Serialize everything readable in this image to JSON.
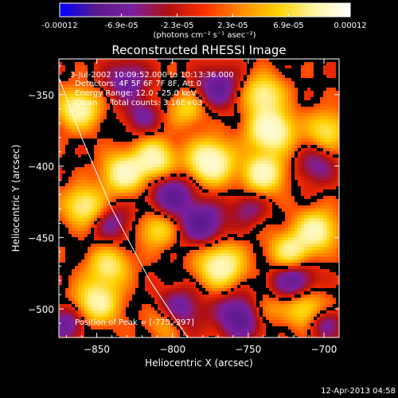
{
  "colorbar": {
    "tick_labels": [
      "-0.00012",
      "-6.9e-05",
      "-2.3e-05",
      "2.3e-05",
      "6.9e-05",
      "0.00012"
    ],
    "tick_values": [
      -0.00012,
      -6.9e-05,
      -2.3e-05,
      2.3e-05,
      6.9e-05,
      0.00012
    ],
    "unit_label": "(photons cm⁻² s⁻¹ asec⁻²)",
    "range": [
      -0.00012,
      0.00012
    ],
    "colors": [
      "#0000ff",
      "#5a1a8c",
      "#7a1fa0",
      "#b01010",
      "#ff3000",
      "#ff8c00",
      "#ffd000",
      "#fff4a0",
      "#ffffff"
    ]
  },
  "chart_data": {
    "type": "heatmap",
    "title": "Reconstructed RHESSI Image",
    "xlabel": "Heliocentric X (arcsec)",
    "ylabel": "Heliocentric Y (arcsec)",
    "xlim": [
      -875,
      -690
    ],
    "ylim": [
      -520,
      -325
    ],
    "x_ticks": [
      -850,
      -800,
      -750,
      -700
    ],
    "x_tick_labels": [
      "−850",
      "−800",
      "−750",
      "−700"
    ],
    "y_ticks": [
      -350,
      -400,
      -450,
      -500
    ],
    "y_tick_labels": [
      "−350",
      "−400",
      "−450",
      "−500"
    ],
    "annotations": [
      "3-Jul-2002 10:09:52.000 to 10:13:36.000",
      "Detectors: 4F 5F 6F 7F 8F, Att 0",
      "Energy Range: 12.0 - 25.0 keV",
      "Clean     Total counts: 3.16E+03"
    ],
    "peak_label": "Position of Peak = [-775,-397]",
    "peak_position": [
      -775,
      -397
    ],
    "limb_curve": [
      [
        -878,
        -330
      ],
      [
        -860,
        -380
      ],
      [
        -840,
        -430
      ],
      [
        -815,
        -480
      ],
      [
        -790,
        -520
      ]
    ],
    "blobs": [
      {
        "x": -775,
        "y": -397,
        "v": 1.0,
        "s": 10
      },
      {
        "x": -735,
        "y": -375,
        "v": 1.0,
        "s": 10
      },
      {
        "x": -740,
        "y": -405,
        "v": 0.85,
        "s": 9
      },
      {
        "x": -740,
        "y": -350,
        "v": 0.7,
        "s": 9
      },
      {
        "x": -812,
        "y": -395,
        "v": 0.8,
        "s": 9
      },
      {
        "x": -832,
        "y": -405,
        "v": 0.85,
        "s": 9
      },
      {
        "x": -862,
        "y": -360,
        "v": 0.8,
        "s": 9
      },
      {
        "x": -858,
        "y": -428,
        "v": 0.7,
        "s": 9
      },
      {
        "x": -850,
        "y": -495,
        "v": 0.75,
        "s": 10
      },
      {
        "x": -842,
        "y": -470,
        "v": 0.6,
        "s": 9
      },
      {
        "x": -768,
        "y": -470,
        "v": 0.85,
        "s": 10
      },
      {
        "x": -722,
        "y": -460,
        "v": 0.7,
        "s": 9
      },
      {
        "x": -705,
        "y": -445,
        "v": 0.8,
        "s": 9
      },
      {
        "x": -698,
        "y": -375,
        "v": 0.55,
        "s": 9
      },
      {
        "x": -712,
        "y": -500,
        "v": 0.6,
        "s": 9
      },
      {
        "x": -740,
        "y": -500,
        "v": 0.4,
        "s": 8
      },
      {
        "x": -810,
        "y": -445,
        "v": 0.5,
        "s": 8
      },
      {
        "x": -790,
        "y": -360,
        "v": 0.45,
        "s": 8
      },
      {
        "x": -805,
        "y": -510,
        "v": 0.35,
        "s": 8
      },
      {
        "x": -800,
        "y": -420,
        "v": -0.6,
        "s": 10
      },
      {
        "x": -780,
        "y": -440,
        "v": -0.65,
        "s": 10
      },
      {
        "x": -770,
        "y": -345,
        "v": -0.55,
        "s": 10
      },
      {
        "x": -830,
        "y": -340,
        "v": -0.5,
        "s": 10
      },
      {
        "x": -755,
        "y": -505,
        "v": -0.7,
        "s": 11
      },
      {
        "x": -720,
        "y": -480,
        "v": -0.6,
        "s": 10
      },
      {
        "x": -795,
        "y": -500,
        "v": -0.5,
        "s": 10
      },
      {
        "x": -840,
        "y": -440,
        "v": -0.4,
        "s": 9
      },
      {
        "x": -870,
        "y": -510,
        "v": -0.5,
        "s": 9
      },
      {
        "x": -705,
        "y": -400,
        "v": -0.4,
        "s": 9
      },
      {
        "x": -700,
        "y": -510,
        "v": -0.45,
        "s": 8
      },
      {
        "x": -750,
        "y": -430,
        "v": -0.35,
        "s": 8
      },
      {
        "x": -820,
        "y": -365,
        "v": -0.4,
        "s": 8
      }
    ]
  },
  "footer": {
    "timestamp": "12-Apr-2013 04:58"
  }
}
